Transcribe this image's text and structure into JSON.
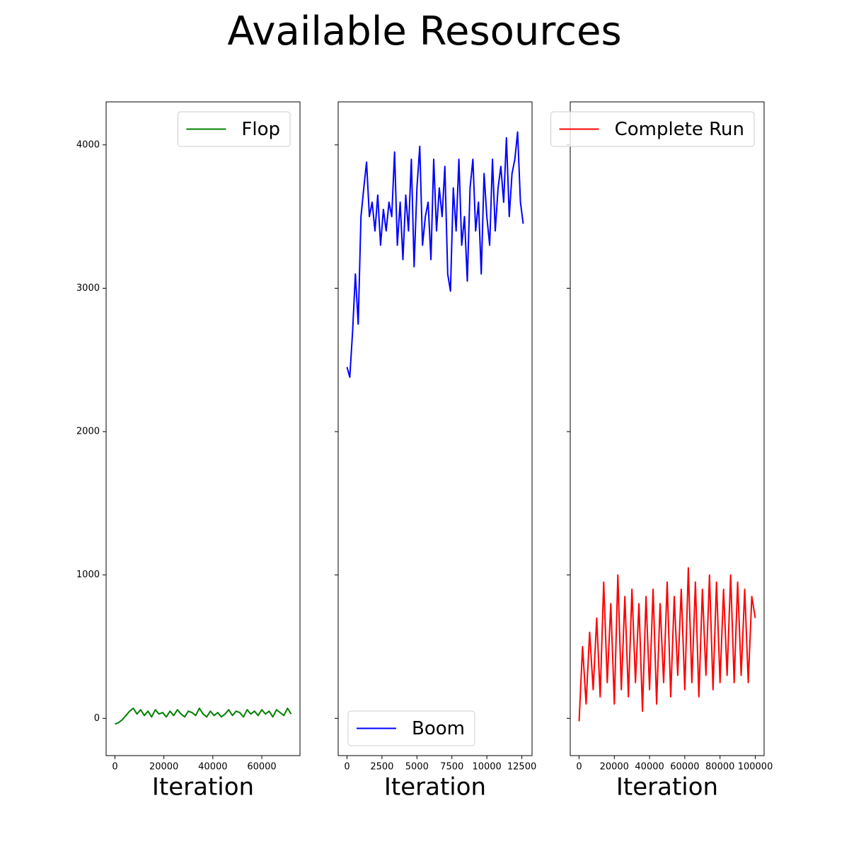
{
  "title": "Available Resources",
  "chart_data": [
    {
      "type": "line",
      "xlabel": "Iteration",
      "legend": "upper right",
      "xlim": [
        -3600,
        75600
      ],
      "xticks": [
        0,
        20000,
        40000,
        60000
      ],
      "ylim": [
        -260,
        4300
      ],
      "yticks": [
        0,
        1000,
        2000,
        3000,
        4000
      ],
      "x": [
        0,
        1500,
        3000,
        4500,
        6000,
        7500,
        9000,
        10500,
        12000,
        13500,
        15000,
        16500,
        18000,
        19500,
        21000,
        22500,
        24000,
        25500,
        27000,
        28500,
        30000,
        31500,
        33000,
        34500,
        36000,
        37500,
        39000,
        40500,
        42000,
        43500,
        45000,
        46500,
        48000,
        49500,
        51000,
        52500,
        54000,
        55500,
        57000,
        58500,
        60000,
        61500,
        63000,
        64500,
        66000,
        67500,
        69000,
        70500,
        72000
      ],
      "series": [
        {
          "name": "Flop",
          "color": "#008000",
          "values": [
            -40,
            -30,
            -10,
            20,
            50,
            70,
            30,
            60,
            20,
            50,
            10,
            60,
            30,
            40,
            10,
            50,
            20,
            60,
            30,
            10,
            50,
            40,
            20,
            70,
            30,
            10,
            50,
            20,
            40,
            10,
            30,
            60,
            20,
            50,
            40,
            10,
            60,
            30,
            50,
            20,
            60,
            30,
            50,
            10,
            60,
            40,
            20,
            70,
            30
          ]
        }
      ]
    },
    {
      "type": "line",
      "xlabel": "Iteration",
      "legend": "lower left",
      "xlim": [
        -630,
        13230
      ],
      "xticks": [
        0,
        2500,
        5000,
        7500,
        10000,
        12500
      ],
      "ylim": [
        -260,
        4300
      ],
      "x": [
        0,
        200,
        400,
        600,
        800,
        1000,
        1200,
        1400,
        1600,
        1800,
        2000,
        2200,
        2400,
        2600,
        2800,
        3000,
        3200,
        3400,
        3600,
        3800,
        4000,
        4200,
        4400,
        4600,
        4800,
        5000,
        5200,
        5400,
        5600,
        5800,
        6000,
        6200,
        6400,
        6600,
        6800,
        7000,
        7200,
        7400,
        7600,
        7800,
        8000,
        8200,
        8400,
        8600,
        8800,
        9000,
        9200,
        9400,
        9600,
        9800,
        10000,
        10200,
        10400,
        10600,
        10800,
        11000,
        11200,
        11400,
        11600,
        11800,
        12000,
        12200,
        12400,
        12600
      ],
      "series": [
        {
          "name": "Boom",
          "color": "#0000ff",
          "values": [
            2450,
            2380,
            2700,
            3100,
            2750,
            3500,
            3700,
            3880,
            3500,
            3600,
            3400,
            3650,
            3300,
            3550,
            3400,
            3600,
            3500,
            3950,
            3300,
            3600,
            3200,
            3650,
            3400,
            3900,
            3150,
            3700,
            3990,
            3300,
            3500,
            3600,
            3200,
            3900,
            3400,
            3700,
            3500,
            3850,
            3100,
            2980,
            3700,
            3400,
            3900,
            3300,
            3500,
            3050,
            3700,
            3900,
            3400,
            3600,
            3100,
            3800,
            3500,
            3300,
            3900,
            3400,
            3700,
            3850,
            3600,
            4050,
            3500,
            3800,
            3900,
            4090,
            3600,
            3450
          ]
        }
      ]
    },
    {
      "type": "line",
      "xlabel": "Iteration",
      "legend": "upper right",
      "xlim": [
        -5000,
        105000
      ],
      "xticks": [
        0,
        20000,
        40000,
        60000,
        80000,
        100000
      ],
      "ylim": [
        -260,
        4300
      ],
      "x": [
        0,
        2000,
        4000,
        6000,
        8000,
        10000,
        12000,
        14000,
        16000,
        18000,
        20000,
        22000,
        24000,
        26000,
        28000,
        30000,
        32000,
        34000,
        36000,
        38000,
        40000,
        42000,
        44000,
        46000,
        48000,
        50000,
        52000,
        54000,
        56000,
        58000,
        60000,
        62000,
        64000,
        66000,
        68000,
        70000,
        72000,
        74000,
        76000,
        78000,
        80000,
        82000,
        84000,
        86000,
        88000,
        90000,
        92000,
        94000,
        96000,
        98000,
        100000
      ],
      "series": [
        {
          "name": "Complete Run",
          "color": "#ff0000",
          "values": [
            -20,
            500,
            100,
            600,
            200,
            700,
            150,
            950,
            250,
            800,
            100,
            1000,
            200,
            850,
            150,
            900,
            250,
            800,
            50,
            850,
            200,
            900,
            100,
            800,
            250,
            950,
            150,
            850,
            300,
            900,
            200,
            1050,
            250,
            950,
            150,
            900,
            300,
            1000,
            200,
            950,
            250,
            900,
            300,
            1000,
            250,
            950,
            300,
            900,
            250,
            850,
            700
          ]
        }
      ]
    }
  ]
}
